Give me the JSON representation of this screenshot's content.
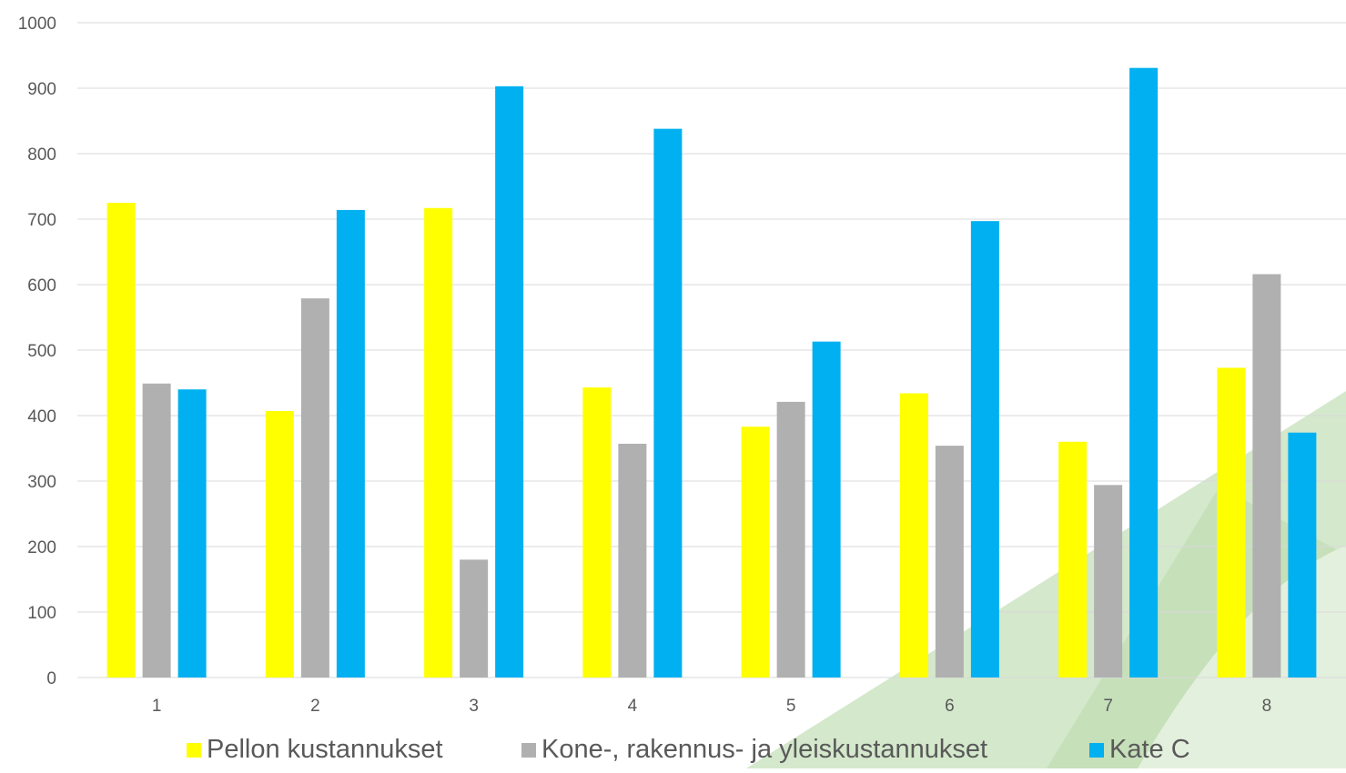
{
  "chart_data": {
    "type": "bar",
    "title": "",
    "xlabel": "",
    "ylabel": "",
    "categories": [
      "1",
      "2",
      "3",
      "4",
      "5",
      "6",
      "7",
      "8"
    ],
    "series": [
      {
        "name": "Pellon kustannukset",
        "color": "#FFFF00",
        "values": [
          725,
          407,
          717,
          443,
          383,
          434,
          360,
          473
        ]
      },
      {
        "name": "Kone-, rakennus- ja yleiskustannukset",
        "color": "#B0B0B0",
        "values": [
          449,
          579,
          180,
          357,
          421,
          354,
          294,
          616
        ]
      },
      {
        "name": "Kate C",
        "color": "#00B0F0",
        "values": [
          440,
          714,
          903,
          838,
          513,
          697,
          931,
          374
        ]
      }
    ],
    "ylim": [
      0,
      1000
    ],
    "yticks": [
      "0",
      "100",
      "200",
      "300",
      "400",
      "500",
      "600",
      "700",
      "800",
      "900",
      "1000"
    ],
    "grid": true,
    "legend_position": "bottom"
  },
  "colors": {
    "gridline": "#D9D9D9",
    "axis_text": "#595959",
    "background_decoration": "#CFE3C5"
  }
}
